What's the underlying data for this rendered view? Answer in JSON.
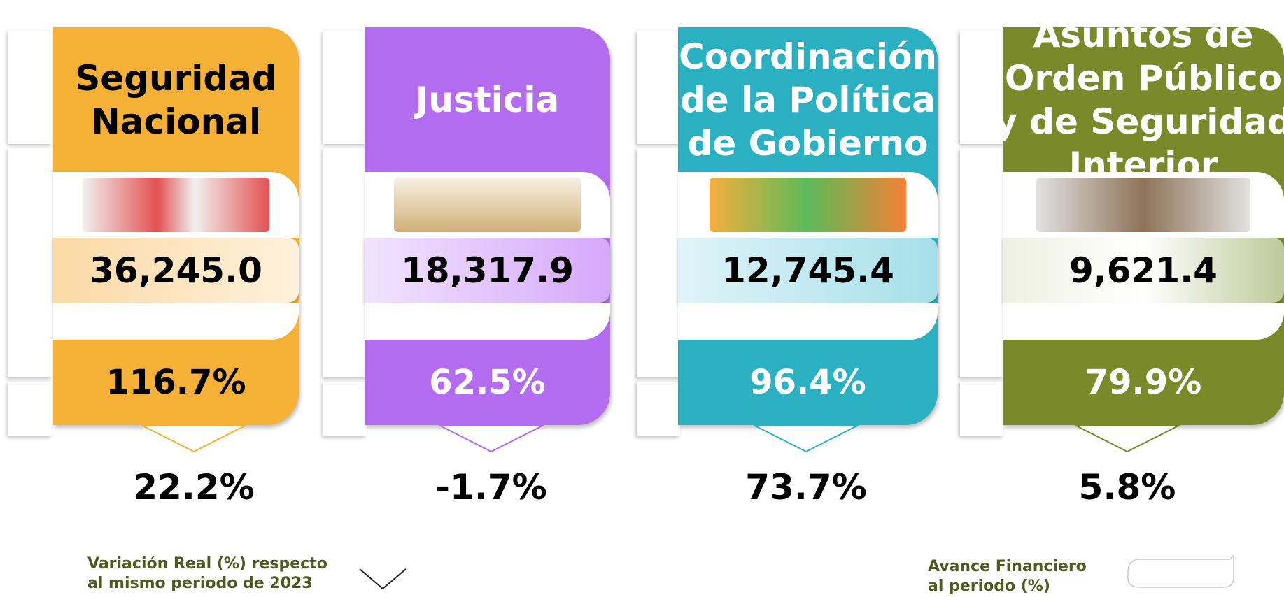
{
  "cards": [
    {
      "title_lines": [
        "Seguridad",
        "Nacional"
      ],
      "amount": "36,245.0",
      "avance": "116.7%",
      "variacion": "22.2%"
    },
    {
      "title_lines": [
        "Justicia"
      ],
      "amount": "18,317.9",
      "avance": "62.5%",
      "variacion": "-1.7%"
    },
    {
      "title_lines": [
        "Coordinación",
        "de la Política",
        "de Gobierno"
      ],
      "amount": "12,745.4",
      "avance": "96.4%",
      "variacion": "73.7%"
    },
    {
      "title_lines": [
        "Asuntos de",
        "Orden Público",
        "y de Seguridad",
        "Interior"
      ],
      "amount": "9,621.4",
      "avance": "79.9%",
      "variacion": "5.8%"
    }
  ],
  "legend": {
    "variacion_lines": [
      "Variación Real (%) respecto",
      "al mismo periodo de  2023"
    ],
    "avance_lines": [
      "Avance Financiero",
      "al periodo (%)"
    ]
  }
}
